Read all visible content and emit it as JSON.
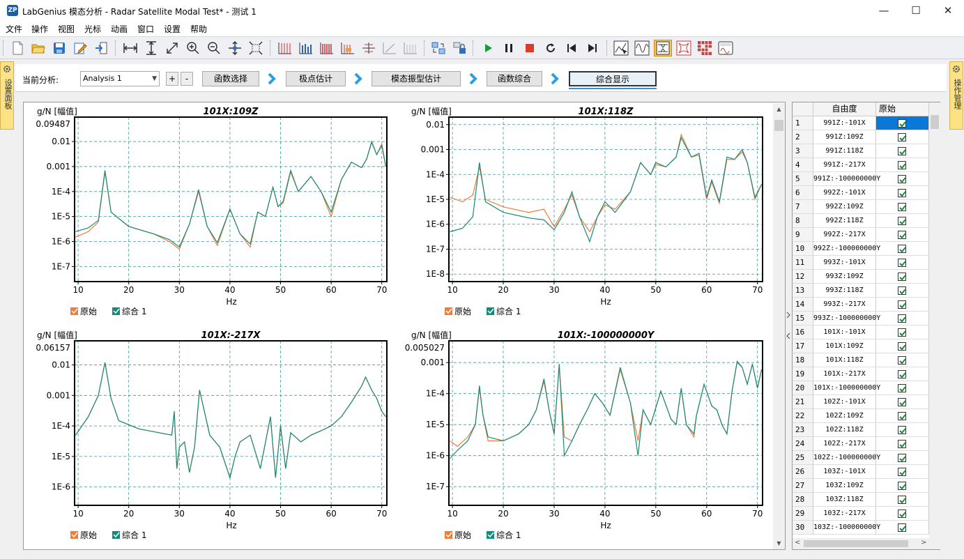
{
  "window": {
    "title": "LabGenius 模态分析 - Radar Satellite Modal Test* - 测试 1",
    "logo_text": "ZP",
    "controls": {
      "minimize": "—",
      "maximize": "☐",
      "close": "✕"
    }
  },
  "menu": [
    "文件",
    "操作",
    "视图",
    "光标",
    "动画",
    "窗口",
    "设置",
    "帮助"
  ],
  "toolbar": {
    "groups": [
      [
        "new-file-icon",
        "open-folder-icon",
        "save-icon",
        "edit-icon",
        "import-icon"
      ],
      [
        "zoom-x-icon",
        "zoom-y-icon",
        "zoom-xy-icon",
        "zoom-in-icon",
        "zoom-out-icon",
        "pan-icon",
        "fit-icon"
      ],
      [
        "grid-style-1-icon",
        "grid-style-2-icon",
        "grid-style-3-icon",
        "grid-style-4-icon",
        "grid-style-5-icon",
        "grid-style-6-icon",
        "grid-style-7-icon"
      ],
      [
        "refresh-link-icon",
        "lock-icon"
      ],
      [
        "play-icon",
        "pause-icon",
        "stop-icon",
        "loop-icon",
        "step-back-icon",
        "step-forward-icon"
      ],
      [
        "select-curve-icon",
        "wave-icon",
        "fit-frame-icon",
        "shape-icon",
        "matrix-icon",
        "display-icon"
      ]
    ],
    "active": "fit-frame-icon"
  },
  "left_panel": {
    "label": "设置面板"
  },
  "right_panel": {
    "label": "操作管理"
  },
  "workflow": {
    "current_label": "当前分析:",
    "analysis_value": "Analysis 1",
    "add_label": "+",
    "remove_label": "-",
    "steps": [
      "函数选择",
      "极点估计",
      "模态振型估计",
      "函数综合",
      "综合显示"
    ],
    "current_step": 4
  },
  "charts": [
    {
      "title": "101X:109Z",
      "ylabel": "g/N [幅值]",
      "xlabel": "Hz",
      "top_value": "0.09487",
      "yticks": [
        "0.01",
        "0.001",
        "1E-4",
        "1E-5",
        "1E-6",
        "1E-7"
      ],
      "xticks": [
        "10",
        "20",
        "30",
        "40",
        "50",
        "60",
        "70"
      ],
      "legend": [
        "原始",
        "综合 1"
      ]
    },
    {
      "title": "101X:118Z",
      "ylabel": "g/N [幅值]",
      "xlabel": "Hz",
      "top_value": "",
      "yticks": [
        "0.01",
        "0.001",
        "1E-4",
        "1E-5",
        "1E-6",
        "1E-7",
        "1E-8"
      ],
      "xticks": [
        "10",
        "20",
        "30",
        "40",
        "50",
        "60",
        "70"
      ],
      "legend": [
        "原始",
        "综合 1"
      ]
    },
    {
      "title": "101X:-217X",
      "ylabel": "g/N [幅值]",
      "xlabel": "Hz",
      "top_value": "0.06157",
      "yticks": [
        "0.01",
        "0.001",
        "1E-4",
        "1E-5",
        "1E-6"
      ],
      "xticks": [
        "10",
        "20",
        "30",
        "40",
        "50",
        "60",
        "70"
      ],
      "legend": [
        "原始",
        "综合 1"
      ]
    },
    {
      "title": "101X:-100000000Y",
      "ylabel": "g/N [幅值]",
      "xlabel": "Hz",
      "top_value": "0.005027",
      "yticks": [
        "0.001",
        "1E-4",
        "1E-5",
        "1E-6",
        "1E-7"
      ],
      "xticks": [
        "10",
        "20",
        "30",
        "40",
        "50",
        "60",
        "70"
      ],
      "legend": [
        "原始",
        "综合 1"
      ]
    }
  ],
  "chart_data": [
    {
      "type": "line",
      "title": "101X:109Z",
      "xlabel": "Hz",
      "ylabel": "g/N [幅值]",
      "xlim": [
        9.3,
        71
      ],
      "ylim": [
        2.5e-08,
        0.09487
      ],
      "yscale": "log",
      "grid": true,
      "series": [
        {
          "name": "原始",
          "color": "#ef7d3c",
          "x": [
            9.5,
            12,
            14,
            15.3,
            16.5,
            20,
            25,
            28,
            30,
            32,
            33.8,
            35.5,
            37.5,
            40,
            42,
            44,
            45.5,
            47,
            48.5,
            49.5,
            50.5,
            52,
            53.5,
            56,
            58,
            60,
            62,
            64,
            66,
            67,
            68,
            69,
            70,
            70.8
          ],
          "y": [
            1.5e-06,
            2.5e-06,
            6e-06,
            0.0006,
            1.5e-05,
            4e-06,
            2e-06,
            1e-06,
            5e-07,
            5e-06,
            0.0001,
            4e-06,
            7e-07,
            2e-05,
            2e-06,
            6e-07,
            1.5e-05,
            1e-05,
            0.00015,
            2.5e-05,
            3.5e-05,
            0.0006,
            0.0001,
            0.0004,
            0.0001,
            1e-05,
            0.0003,
            0.0015,
            0.0009,
            0.002,
            0.009,
            0.003,
            0.008,
            0.001
          ]
        },
        {
          "name": "综合 1",
          "color": "#168a7a",
          "x": [
            9.5,
            12,
            14,
            15.3,
            16.5,
            20,
            25,
            28,
            30,
            32,
            33.8,
            35.5,
            37.5,
            40,
            42,
            44,
            45.5,
            47,
            48.5,
            49.5,
            50.5,
            52,
            53.5,
            56,
            58,
            60,
            62,
            64,
            66,
            67,
            68,
            69,
            70,
            70.8
          ],
          "y": [
            2.5e-06,
            3.5e-06,
            7e-06,
            0.0007,
            1.5e-05,
            4e-06,
            2e-06,
            1.2e-06,
            6e-07,
            5e-06,
            0.00012,
            4e-06,
            9e-07,
            2e-05,
            2e-06,
            8e-07,
            1.5e-05,
            1e-05,
            0.00015,
            2.5e-05,
            4e-05,
            0.0007,
            0.0001,
            0.0004,
            0.0001,
            1.5e-05,
            0.0003,
            0.0015,
            0.0009,
            0.002,
            0.01,
            0.003,
            0.007,
            0.001
          ]
        }
      ]
    },
    {
      "type": "line",
      "title": "101X:118Z",
      "xlabel": "Hz",
      "ylabel": "g/N [幅值]",
      "xlim": [
        9.3,
        71
      ],
      "ylim": [
        5e-09,
        0.02
      ],
      "yscale": "log",
      "grid": true,
      "series": [
        {
          "name": "原始",
          "color": "#ef7d3c",
          "x": [
            9.5,
            12,
            14,
            15.3,
            16.5,
            20,
            25,
            28,
            30,
            32,
            33.5,
            35,
            37,
            38.5,
            40,
            42,
            45,
            47,
            49,
            50,
            52,
            54,
            55,
            57,
            58.5,
            60,
            61,
            62.5,
            64,
            65.5,
            67,
            68,
            69.5,
            70.8
          ],
          "y": [
            1.2e-05,
            8e-06,
            1.5e-05,
            0.0002,
            1e-05,
            5e-06,
            3e-06,
            4e-06,
            8e-07,
            4e-06,
            1.5e-05,
            2e-06,
            5e-07,
            2e-06,
            6e-06,
            4e-06,
            2e-05,
            0.0003,
            0.0001,
            0.00025,
            0.0002,
            0.0005,
            0.004,
            0.0005,
            0.0006,
            1e-05,
            5e-05,
            7e-06,
            0.0004,
            0.0004,
            0.0008,
            0.0003,
            1e-05,
            4e-05
          ]
        },
        {
          "name": "综合 1",
          "color": "#168a7a",
          "x": [
            9.5,
            12,
            14,
            15.3,
            16.5,
            20,
            25,
            28,
            30,
            32,
            33.5,
            35,
            37,
            38.5,
            40,
            42,
            45,
            47,
            49,
            50,
            52,
            54,
            55,
            57,
            58.5,
            60,
            61,
            62.5,
            64,
            65.5,
            67,
            68,
            69.5,
            70.8
          ],
          "y": [
            5e-07,
            7e-07,
            2e-06,
            0.0003,
            8e-06,
            3e-06,
            1.8e-06,
            1.5e-06,
            6e-07,
            3e-06,
            2e-05,
            2e-06,
            2e-07,
            2e-06,
            8e-06,
            3e-06,
            2e-05,
            0.0003,
            0.0001,
            0.0003,
            0.0002,
            0.0005,
            0.003,
            0.0005,
            0.0007,
            1.2e-05,
            6e-05,
            8e-06,
            0.0005,
            0.0004,
            0.001,
            0.0003,
            1.2e-05,
            4e-05
          ]
        }
      ]
    },
    {
      "type": "line",
      "title": "101X:-217X",
      "xlabel": "Hz",
      "ylabel": "g/N [幅值]",
      "xlim": [
        9.3,
        71
      ],
      "ylim": [
        2.5e-07,
        0.06157
      ],
      "yscale": "log",
      "grid": true,
      "series": [
        {
          "name": "原始",
          "color": "#ef7d3c",
          "x": [
            9.5,
            12,
            14,
            15.3,
            16.5,
            18,
            22,
            26,
            28.5,
            29,
            29.5,
            30,
            31,
            32,
            33,
            34,
            36,
            38,
            40,
            41,
            42,
            44,
            46,
            48,
            49,
            50,
            51,
            52,
            54,
            56,
            58,
            60,
            62,
            64,
            66,
            66.8,
            68,
            69,
            70,
            70.8
          ],
          "y": [
            5e-05,
            0.0002,
            0.001,
            0.012,
            0.0008,
            0.00015,
            8e-05,
            6e-05,
            5e-05,
            0.0003,
            4e-06,
            2e-05,
            3e-05,
            3e-06,
            2e-05,
            0.0015,
            5e-05,
            2e-05,
            2e-06,
            1e-05,
            3e-05,
            5e-05,
            4e-06,
            0.0002,
            2e-06,
            0.0001,
            4e-06,
            6e-05,
            3e-05,
            5e-05,
            7e-05,
            0.0001,
            0.0002,
            0.0006,
            0.002,
            0.004,
            0.0015,
            0.0008,
            0.0003,
            0.0002
          ]
        },
        {
          "name": "综合 1",
          "color": "#168a7a",
          "x": [
            9.5,
            12,
            14,
            15.3,
            16.5,
            18,
            22,
            26,
            28.5,
            29,
            29.5,
            30,
            31,
            32,
            33,
            34,
            36,
            38,
            40,
            41,
            42,
            44,
            46,
            48,
            49,
            50,
            51,
            52,
            54,
            56,
            58,
            60,
            62,
            64,
            66,
            66.8,
            68,
            69,
            70,
            70.8
          ],
          "y": [
            5e-05,
            0.0002,
            0.001,
            0.012,
            0.0008,
            0.00015,
            8e-05,
            6e-05,
            5e-05,
            0.0003,
            4e-06,
            2e-05,
            3e-05,
            3e-06,
            2e-05,
            0.0015,
            5e-05,
            2e-05,
            2e-06,
            1e-05,
            3e-05,
            5e-05,
            4e-06,
            0.0002,
            2e-06,
            0.0001,
            4e-06,
            6e-05,
            3e-05,
            5e-05,
            7e-05,
            0.0001,
            0.0002,
            0.0006,
            0.002,
            0.004,
            0.0015,
            0.0008,
            0.0003,
            0.0002
          ]
        }
      ]
    },
    {
      "type": "line",
      "title": "101X:-100000000Y",
      "xlabel": "Hz",
      "ylabel": "g/N [幅值]",
      "xlim": [
        9.3,
        71
      ],
      "ylim": [
        2.5e-08,
        0.005027
      ],
      "yscale": "log",
      "grid": true,
      "series": [
        {
          "name": "原始",
          "color": "#ef7d3c",
          "x": [
            9.5,
            11,
            13,
            14.5,
            15.3,
            16,
            17,
            20,
            23,
            25,
            26.5,
            28,
            29,
            30,
            31,
            32,
            33.5,
            35,
            36.5,
            38,
            39.5,
            41,
            43,
            45,
            46.5,
            47.5,
            49,
            51,
            53,
            54,
            55,
            56,
            57.5,
            58,
            59.5,
            61,
            62,
            63,
            64,
            65,
            66,
            67,
            68,
            69,
            70,
            70.8
          ],
          "y": [
            3e-06,
            2e-06,
            4e-06,
            1e-05,
            0.00015,
            2e-05,
            3e-06,
            3e-06,
            5e-06,
            1e-05,
            3e-05,
            0.00025,
            3e-05,
            5e-06,
            0.0008,
            4e-06,
            3e-06,
            1e-05,
            3e-05,
            0.0001,
            5e-05,
            2e-05,
            0.0006,
            5e-05,
            3e-06,
            3e-05,
            1e-05,
            0.00012,
            1.5e-05,
            1e-05,
            0.00015,
            1e-05,
            4e-06,
            2e-05,
            0.0002,
            4e-05,
            3e-05,
            1e-05,
            5e-06,
            0.00012,
            0.001,
            0.0007,
            0.0002,
            0.0009,
            0.00015,
            0.0006
          ]
        },
        {
          "name": "综合 1",
          "color": "#168a7a",
          "x": [
            9.5,
            11,
            13,
            14.5,
            15.3,
            16,
            17,
            20,
            23,
            25,
            26.5,
            28,
            29,
            30,
            31,
            32,
            33.5,
            35,
            36.5,
            38,
            39.5,
            41,
            43,
            45,
            46.5,
            47.5,
            49,
            51,
            53,
            54,
            55,
            56,
            57.5,
            58,
            59.5,
            61,
            62,
            63,
            64,
            65,
            66,
            67,
            68,
            69,
            70,
            70.8
          ],
          "y": [
            8e-07,
            1.5e-06,
            3e-06,
            1e-05,
            0.00018,
            2e-05,
            4e-06,
            3e-06,
            5e-06,
            1e-05,
            3e-05,
            0.0003,
            3e-05,
            5e-06,
            0.0009,
            1e-06,
            3e-06,
            1e-05,
            3e-05,
            0.0001,
            5e-05,
            2e-05,
            0.0007,
            5e-05,
            1e-06,
            3e-05,
            1e-05,
            0.00012,
            1.5e-05,
            1e-05,
            0.00015,
            1e-05,
            5e-06,
            2e-05,
            0.0002,
            4e-05,
            3e-05,
            1e-05,
            5e-06,
            0.00012,
            0.0011,
            0.0007,
            0.0002,
            0.0009,
            0.00015,
            0.0006
          ]
        }
      ]
    }
  ],
  "grid": {
    "headers": [
      "自由度",
      "原始"
    ],
    "rows": [
      {
        "n": "1",
        "dof": "991Z:-101X",
        "checked": true
      },
      {
        "n": "2",
        "dof": "991Z:109Z",
        "checked": true
      },
      {
        "n": "3",
        "dof": "991Z:118Z",
        "checked": true
      },
      {
        "n": "4",
        "dof": "991Z:-217X",
        "checked": true
      },
      {
        "n": "5",
        "dof": "991Z:-100000000Y",
        "checked": true
      },
      {
        "n": "6",
        "dof": "992Z:-101X",
        "checked": true
      },
      {
        "n": "7",
        "dof": "992Z:109Z",
        "checked": true
      },
      {
        "n": "8",
        "dof": "992Z:118Z",
        "checked": true
      },
      {
        "n": "9",
        "dof": "992Z:-217X",
        "checked": true
      },
      {
        "n": "10",
        "dof": "992Z:-100000000Y",
        "checked": true
      },
      {
        "n": "11",
        "dof": "993Z:-101X",
        "checked": true
      },
      {
        "n": "12",
        "dof": "993Z:109Z",
        "checked": true
      },
      {
        "n": "13",
        "dof": "993Z:118Z",
        "checked": true
      },
      {
        "n": "14",
        "dof": "993Z:-217X",
        "checked": true
      },
      {
        "n": "15",
        "dof": "993Z:-100000000Y",
        "checked": true
      },
      {
        "n": "16",
        "dof": "101X:-101X",
        "checked": true
      },
      {
        "n": "17",
        "dof": "101X:109Z",
        "checked": true
      },
      {
        "n": "18",
        "dof": "101X:118Z",
        "checked": true
      },
      {
        "n": "19",
        "dof": "101X:-217X",
        "checked": true
      },
      {
        "n": "20",
        "dof": "101X:-100000000Y",
        "checked": true
      },
      {
        "n": "21",
        "dof": "102Z:-101X",
        "checked": true
      },
      {
        "n": "22",
        "dof": "102Z:109Z",
        "checked": true
      },
      {
        "n": "23",
        "dof": "102Z:118Z",
        "checked": true
      },
      {
        "n": "24",
        "dof": "102Z:-217X",
        "checked": true
      },
      {
        "n": "25",
        "dof": "102Z:-100000000Y",
        "checked": true
      },
      {
        "n": "26",
        "dof": "103Z:-101X",
        "checked": true
      },
      {
        "n": "27",
        "dof": "103Z:109Z",
        "checked": true
      },
      {
        "n": "28",
        "dof": "103Z:118Z",
        "checked": true
      },
      {
        "n": "29",
        "dof": "103Z:-217X",
        "checked": true
      },
      {
        "n": "30",
        "dof": "103Z:-100000000Y",
        "checked": true
      }
    ],
    "selected_row": 0
  }
}
